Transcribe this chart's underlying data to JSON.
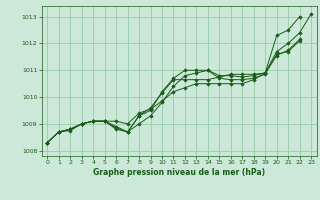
{
  "title": "Graphe pression niveau de la mer (hPa)",
  "bg_color": "#cce8d8",
  "grid_color": "#99ccaa",
  "line_color": "#1a5c1a",
  "marker_color": "#1a5c1a",
  "xlim": [
    -0.5,
    23.5
  ],
  "ylim": [
    1007.8,
    1013.4
  ],
  "yticks": [
    1008,
    1009,
    1010,
    1011,
    1012,
    1013
  ],
  "xticks": [
    0,
    1,
    2,
    3,
    4,
    5,
    6,
    7,
    8,
    9,
    10,
    11,
    12,
    13,
    14,
    15,
    16,
    17,
    18,
    19,
    20,
    21,
    22,
    23
  ],
  "series": [
    [
      1008.3,
      1008.7,
      1008.8,
      1009.0,
      1009.1,
      1009.1,
      1008.8,
      1008.7,
      1009.3,
      1009.5,
      1010.2,
      1010.7,
      1011.0,
      1011.0,
      1011.0,
      1010.8,
      1010.8,
      1010.75,
      1010.8,
      1010.9,
      1012.3,
      1012.5,
      1013.0,
      null
    ],
    [
      1008.3,
      1008.7,
      1008.8,
      1009.0,
      1009.1,
      1009.1,
      1008.9,
      1008.7,
      1009.3,
      1009.6,
      1010.15,
      1010.65,
      1010.65,
      1010.65,
      1010.65,
      1010.75,
      1010.85,
      1010.85,
      1010.85,
      1010.9,
      1011.55,
      1011.75,
      1012.15,
      null
    ],
    [
      1008.3,
      1008.7,
      1008.8,
      1009.0,
      1009.1,
      1009.1,
      1008.85,
      1008.7,
      1009.0,
      1009.3,
      1009.8,
      1010.4,
      1010.8,
      1010.9,
      1011.0,
      1010.7,
      1010.65,
      1010.65,
      1010.7,
      1010.85,
      1011.6,
      1011.7,
      1012.1,
      null
    ],
    [
      1008.3,
      1008.7,
      1008.75,
      1009.0,
      1009.1,
      1009.1,
      1009.1,
      1009.0,
      1009.4,
      1009.55,
      1009.85,
      1010.2,
      1010.35,
      1010.5,
      1010.5,
      1010.5,
      1010.5,
      1010.5,
      1010.65,
      1010.9,
      1011.7,
      1012.0,
      1012.4,
      1013.1
    ]
  ]
}
